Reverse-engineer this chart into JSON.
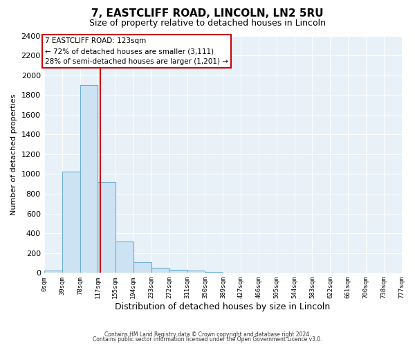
{
  "title": "7, EASTCLIFF ROAD, LINCOLN, LN2 5RU",
  "subtitle": "Size of property relative to detached houses in Lincoln",
  "xlabel": "Distribution of detached houses by size in Lincoln",
  "ylabel": "Number of detached properties",
  "bin_edges": [
    0,
    39,
    78,
    117,
    155,
    194,
    233,
    272,
    311,
    350,
    389,
    427,
    466,
    505,
    544,
    583,
    622,
    661,
    700,
    738,
    777
  ],
  "bin_counts": [
    20,
    1025,
    1900,
    920,
    315,
    105,
    50,
    30,
    20,
    10,
    0,
    0,
    0,
    0,
    0,
    0,
    0,
    0,
    0,
    0
  ],
  "property_size": 123,
  "bar_facecolor": "#cde3f3",
  "bar_edgecolor": "#6aaed6",
  "vline_color": "#cc0000",
  "vline_x": 123,
  "annotation_title": "7 EASTCLIFF ROAD: 123sqm",
  "annotation_line1": "← 72% of detached houses are smaller (3,111)",
  "annotation_line2": "28% of semi-detached houses are larger (1,201) →",
  "annotation_box_edgecolor": "#cc0000",
  "ylim": [
    0,
    2400
  ],
  "yticks": [
    0,
    200,
    400,
    600,
    800,
    1000,
    1200,
    1400,
    1600,
    1800,
    2000,
    2200,
    2400
  ],
  "xtick_labels": [
    "0sqm",
    "39sqm",
    "78sqm",
    "117sqm",
    "155sqm",
    "194sqm",
    "233sqm",
    "272sqm",
    "311sqm",
    "350sqm",
    "389sqm",
    "427sqm",
    "466sqm",
    "505sqm",
    "544sqm",
    "583sqm",
    "622sqm",
    "661sqm",
    "700sqm",
    "738sqm",
    "777sqm"
  ],
  "background_color": "#e8f0f8",
  "grid_color": "#ffffff",
  "footer_line1": "Contains HM Land Registry data © Crown copyright and database right 2024.",
  "footer_line2": "Contains public sector information licensed under the Open Government Licence v3.0."
}
